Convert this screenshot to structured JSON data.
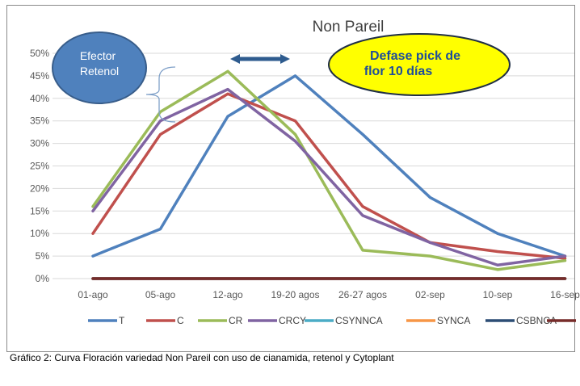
{
  "chart_data": {
    "type": "line",
    "title": "Non Pareil",
    "categories": [
      "01-ago",
      "05-ago",
      "12-ago",
      "19-20 agos",
      "26-27 agos",
      "02-sep",
      "10-sep",
      "16-sep"
    ],
    "ylim": [
      0,
      50
    ],
    "yticks": [
      "0%",
      "5%",
      "10%",
      "15%",
      "20%",
      "25%",
      "30%",
      "35%",
      "40%",
      "45%",
      "50%"
    ],
    "grid": true,
    "legend_position": "bottom",
    "series": [
      {
        "name": "T",
        "color": "#4F81BD",
        "values": [
          5,
          11,
          36,
          45,
          32,
          18,
          10,
          5
        ]
      },
      {
        "name": "C",
        "color": "#C0504D",
        "values": [
          10,
          32,
          41,
          35,
          16,
          8,
          6,
          4.5
        ]
      },
      {
        "name": "CR",
        "color": "#9BBB59",
        "values": [
          16,
          37,
          46,
          32,
          6.3,
          5,
          2,
          4
        ]
      },
      {
        "name": "CRCY",
        "color": "#8064A2",
        "values": [
          15,
          35,
          42,
          30.5,
          14,
          8,
          3,
          5
        ]
      },
      {
        "name": "CSYNNCA",
        "color": "#4BACC6",
        "values": [
          0,
          0,
          0,
          0,
          0,
          0,
          0,
          0
        ]
      },
      {
        "name": "SYNCA",
        "color": "#F79646",
        "values": [
          0,
          0,
          0,
          0,
          0,
          0,
          0,
          0
        ]
      },
      {
        "name": "CSBNCA",
        "color": "#2C4D75",
        "values": [
          0,
          0,
          0,
          0,
          0,
          0,
          0,
          0
        ]
      },
      {
        "name": "",
        "color": "#772C2A",
        "values": [
          0,
          0,
          0,
          0,
          0,
          0,
          0,
          0
        ]
      }
    ],
    "annotations": {
      "efector_text": [
        "Efector",
        "Retenol"
      ],
      "efector_color": "#4F81BD",
      "defase_text": [
        "Defase pick de",
        "flor 10 días"
      ],
      "defase_fill": "#FFFF00",
      "defase_text_color": "#1F4E99",
      "arrow_color": "#2E5B8E"
    }
  },
  "caption": "Gráfico 2: Curva Floración variedad Non Pareil con uso de cianamida, retenol y Cytoplant"
}
